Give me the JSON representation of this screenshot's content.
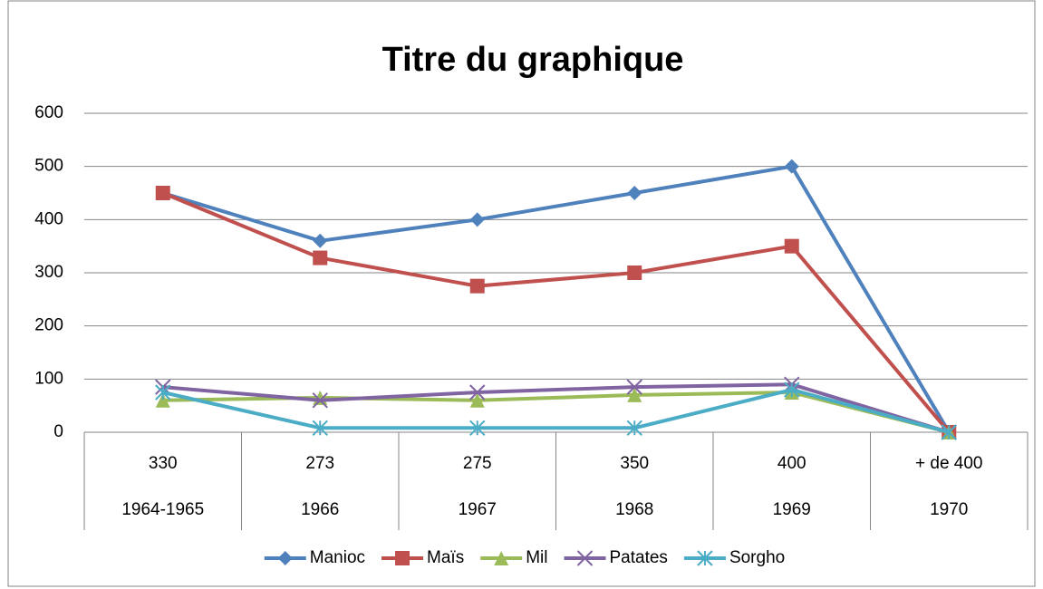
{
  "chart_data": {
    "type": "line",
    "title": "Titre du graphique",
    "categories": [
      "330",
      "273",
      "275",
      "350",
      "400",
      "+ de 400"
    ],
    "categories_level2": [
      "1964-1965",
      "1966",
      "1967",
      "1968",
      "1969",
      "1970"
    ],
    "series": [
      {
        "name": "Manioc",
        "color": "#4F81BD",
        "marker": "diamond",
        "values": [
          450,
          360,
          400,
          450,
          500,
          0
        ]
      },
      {
        "name": "Maïs",
        "color": "#C0504D",
        "marker": "square",
        "values": [
          450,
          328,
          275,
          300,
          350,
          0
        ]
      },
      {
        "name": "Mil",
        "color": "#9BBB59",
        "marker": "triangle",
        "values": [
          60,
          65,
          60,
          70,
          75,
          0
        ]
      },
      {
        "name": "Patates",
        "color": "#8064A2",
        "marker": "x",
        "values": [
          85,
          60,
          75,
          85,
          90,
          0
        ]
      },
      {
        "name": "Sorgho",
        "color": "#4BACC6",
        "marker": "asterisk",
        "values": [
          75,
          8,
          8,
          8,
          80,
          0
        ]
      }
    ],
    "ylim": [
      0,
      600
    ],
    "yticks": [
      0,
      100,
      200,
      300,
      400,
      500,
      600
    ],
    "grid": true,
    "legend": "bottom"
  }
}
